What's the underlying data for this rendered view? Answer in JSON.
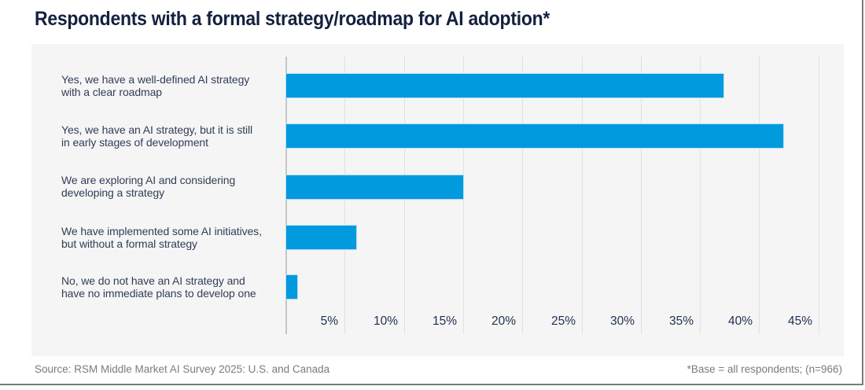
{
  "title": "Respondents with a formal strategy/roadmap for AI adoption*",
  "footer": {
    "source": "Source: RSM Middle Market AI Survey 2025: U.S. and Canada",
    "base_note": "*Base = all respondents; (n=966)"
  },
  "colors": {
    "bar_blue": "#009ade",
    "title_navy": "#13213e",
    "category_label_navy": "#313e57",
    "tick_navy": "#233150",
    "footer_gray": "#7b7b7b",
    "plot_background": "#f5f5f5",
    "gridline_gray": "#e0e0e0"
  },
  "chart_data": {
    "type": "bar",
    "orientation": "horizontal",
    "title": "Respondents with a formal strategy/roadmap for AI adoption*",
    "categories": [
      "Yes, we have a well-defined AI strategy with a clear roadmap",
      "Yes, we have an AI strategy, but it is still in early stages of development",
      "We are exploring AI and considering developing a strategy",
      "We have implemented some AI initiatives, but without a formal strategy",
      "No, we do not have an AI strategy and have no immediate plans to develop one"
    ],
    "values": [
      37,
      42,
      15,
      6,
      1
    ],
    "unit": "percent",
    "xlabel": "",
    "ylabel": "",
    "xlim": [
      0,
      45
    ],
    "x_ticks": [
      "5%",
      "10%",
      "15%",
      "20%",
      "25%",
      "30%",
      "35%",
      "40%",
      "45%"
    ],
    "grid": true,
    "legend": false,
    "source_note": "Source: RSM Middle Market AI Survey 2025: U.S. and Canada",
    "base_note": "*Base = all respondents; (n=966)",
    "rows": [
      {
        "label_line1": "Yes, we have a well-defined AI strategy",
        "label_line2": "with a clear roadmap",
        "value": 37
      },
      {
        "label_line1": "Yes, we have an AI strategy, but it is still",
        "label_line2": "in early stages of development",
        "value": 42
      },
      {
        "label_line1": "We are exploring AI and considering",
        "label_line2": "developing a strategy",
        "value": 15
      },
      {
        "label_line1": "We have implemented some AI initiatives,",
        "label_line2": "but without a formal strategy",
        "value": 6
      },
      {
        "label_line1": "No, we do not have an AI strategy and",
        "label_line2": "have no immediate plans to develop one",
        "value": 1
      }
    ]
  }
}
